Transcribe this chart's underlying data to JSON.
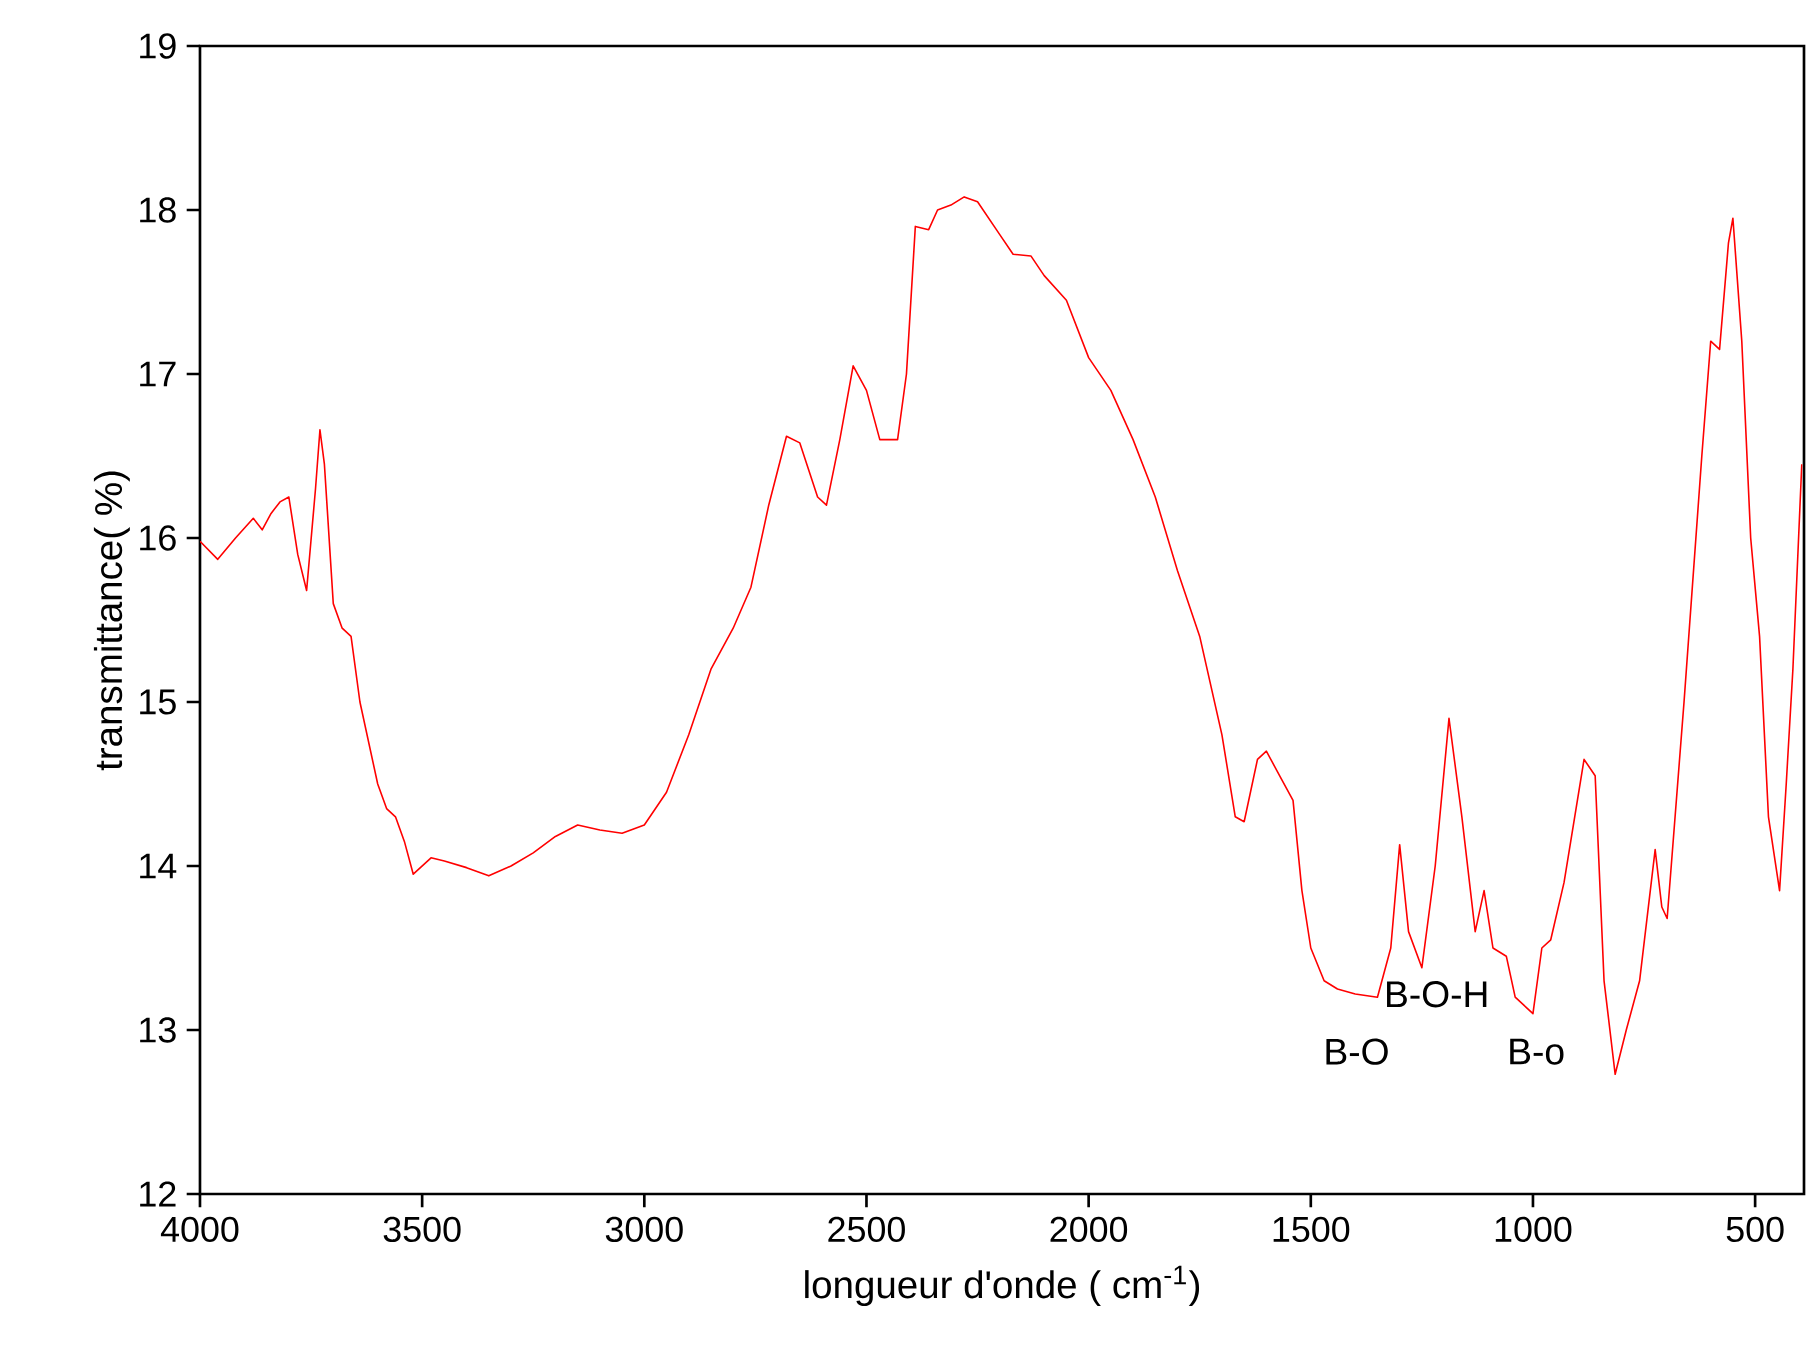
{
  "chart_data": {
    "type": "line",
    "xlabel": "longueur d'onde ( cm$^{-1}$)",
    "ylabel": "transmittance( %)",
    "xlim": [
      4000,
      390
    ],
    "ylim": [
      12,
      19
    ],
    "xticks": [
      4000,
      3500,
      3000,
      2500,
      2000,
      1500,
      1000,
      500
    ],
    "yticks": [
      12,
      13,
      14,
      15,
      16,
      17,
      18,
      19
    ],
    "grid": false,
    "marker": "none",
    "line_style": "solid",
    "annotations": [
      "B-O-H",
      "B-O",
      "B-o"
    ],
    "series": [
      {
        "color": "#ff0000",
        "x": [
          4000,
          3960,
          3920,
          3880,
          3860,
          3840,
          3820,
          3800,
          3780,
          3760,
          3740,
          3730,
          3720,
          3700,
          3680,
          3660,
          3640,
          3620,
          3600,
          3580,
          3560,
          3540,
          3520,
          3500,
          3480,
          3450,
          3400,
          3350,
          3300,
          3250,
          3200,
          3150,
          3100,
          3050,
          3000,
          2950,
          2900,
          2850,
          2800,
          2760,
          2720,
          2680,
          2650,
          2610,
          2590,
          2560,
          2530,
          2500,
          2470,
          2430,
          2410,
          2390,
          2360,
          2340,
          2310,
          2280,
          2250,
          2200,
          2170,
          2130,
          2100,
          2050,
          2000,
          1950,
          1900,
          1850,
          1800,
          1750,
          1700,
          1670,
          1650,
          1620,
          1600,
          1570,
          1540,
          1520,
          1500,
          1470,
          1440,
          1400,
          1350,
          1320,
          1300,
          1280,
          1250,
          1220,
          1189,
          1160,
          1130,
          1110,
          1090,
          1060,
          1040,
          1000,
          980,
          960,
          930,
          885,
          860,
          840,
          815,
          790,
          760,
          725,
          710,
          698,
          660,
          620,
          600,
          580,
          560,
          550,
          530,
          510,
          490,
          470,
          445,
          430,
          415,
          395
        ],
        "values": [
          15.98,
          15.87,
          16.0,
          16.12,
          16.05,
          16.15,
          16.22,
          16.25,
          15.9,
          15.68,
          16.3,
          16.66,
          16.45,
          15.6,
          15.45,
          15.4,
          15.0,
          14.75,
          14.5,
          14.35,
          14.3,
          14.15,
          13.95,
          14.0,
          14.05,
          14.03,
          13.99,
          13.94,
          14.0,
          14.08,
          14.18,
          14.25,
          14.22,
          14.2,
          14.25,
          14.45,
          14.8,
          15.2,
          15.45,
          15.7,
          16.2,
          16.62,
          16.58,
          16.25,
          16.2,
          16.6,
          17.05,
          16.9,
          16.6,
          16.6,
          17.0,
          17.9,
          17.88,
          18.0,
          18.03,
          18.08,
          18.05,
          17.85,
          17.73,
          17.72,
          17.6,
          17.45,
          17.1,
          16.9,
          16.6,
          16.25,
          15.8,
          15.4,
          14.8,
          14.3,
          14.27,
          14.65,
          14.7,
          14.55,
          14.4,
          13.85,
          13.5,
          13.3,
          13.25,
          13.22,
          13.2,
          13.5,
          14.13,
          13.6,
          13.38,
          14.0,
          14.9,
          14.3,
          13.6,
          13.85,
          13.5,
          13.45,
          13.2,
          13.1,
          13.5,
          13.55,
          13.9,
          14.65,
          14.55,
          13.3,
          12.73,
          13.0,
          13.3,
          14.1,
          13.75,
          13.68,
          15.0,
          16.5,
          17.2,
          17.15,
          17.8,
          17.95,
          17.2,
          16.0,
          15.4,
          14.3,
          13.85,
          14.5,
          15.2,
          16.45
        ]
      }
    ]
  }
}
